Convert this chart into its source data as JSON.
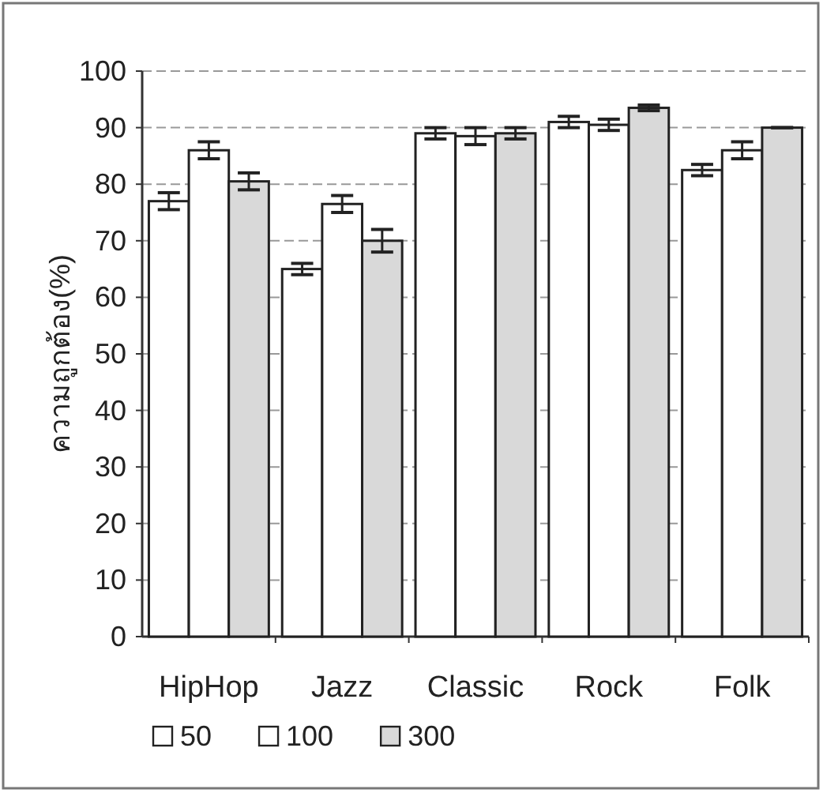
{
  "chart_data": {
    "type": "bar",
    "ylabel": "ความถูกต้อง(%)",
    "categories": [
      "HipHop",
      "Jazz",
      "Classic",
      "Rock",
      "Folk"
    ],
    "series": [
      {
        "name": "50",
        "color": "#ffffff",
        "values": [
          77,
          65,
          89,
          91,
          82.5
        ],
        "errors": [
          1.5,
          1,
          1,
          1,
          1
        ]
      },
      {
        "name": "100",
        "color": "#ffffff",
        "values": [
          86,
          76.5,
          88.5,
          90.5,
          86
        ],
        "errors": [
          1.5,
          1.5,
          1.5,
          1,
          1.5
        ]
      },
      {
        "name": "300",
        "color": "#d9d9d9",
        "values": [
          80.5,
          70,
          89,
          93.5,
          90
        ],
        "errors": [
          1.5,
          2,
          1,
          0.5,
          0
        ]
      }
    ],
    "ylim": [
      0,
      100
    ],
    "yticks": [
      0,
      10,
      20,
      30,
      40,
      50,
      60,
      70,
      80,
      90,
      100
    ],
    "grid": "y",
    "legend": "bottom"
  }
}
